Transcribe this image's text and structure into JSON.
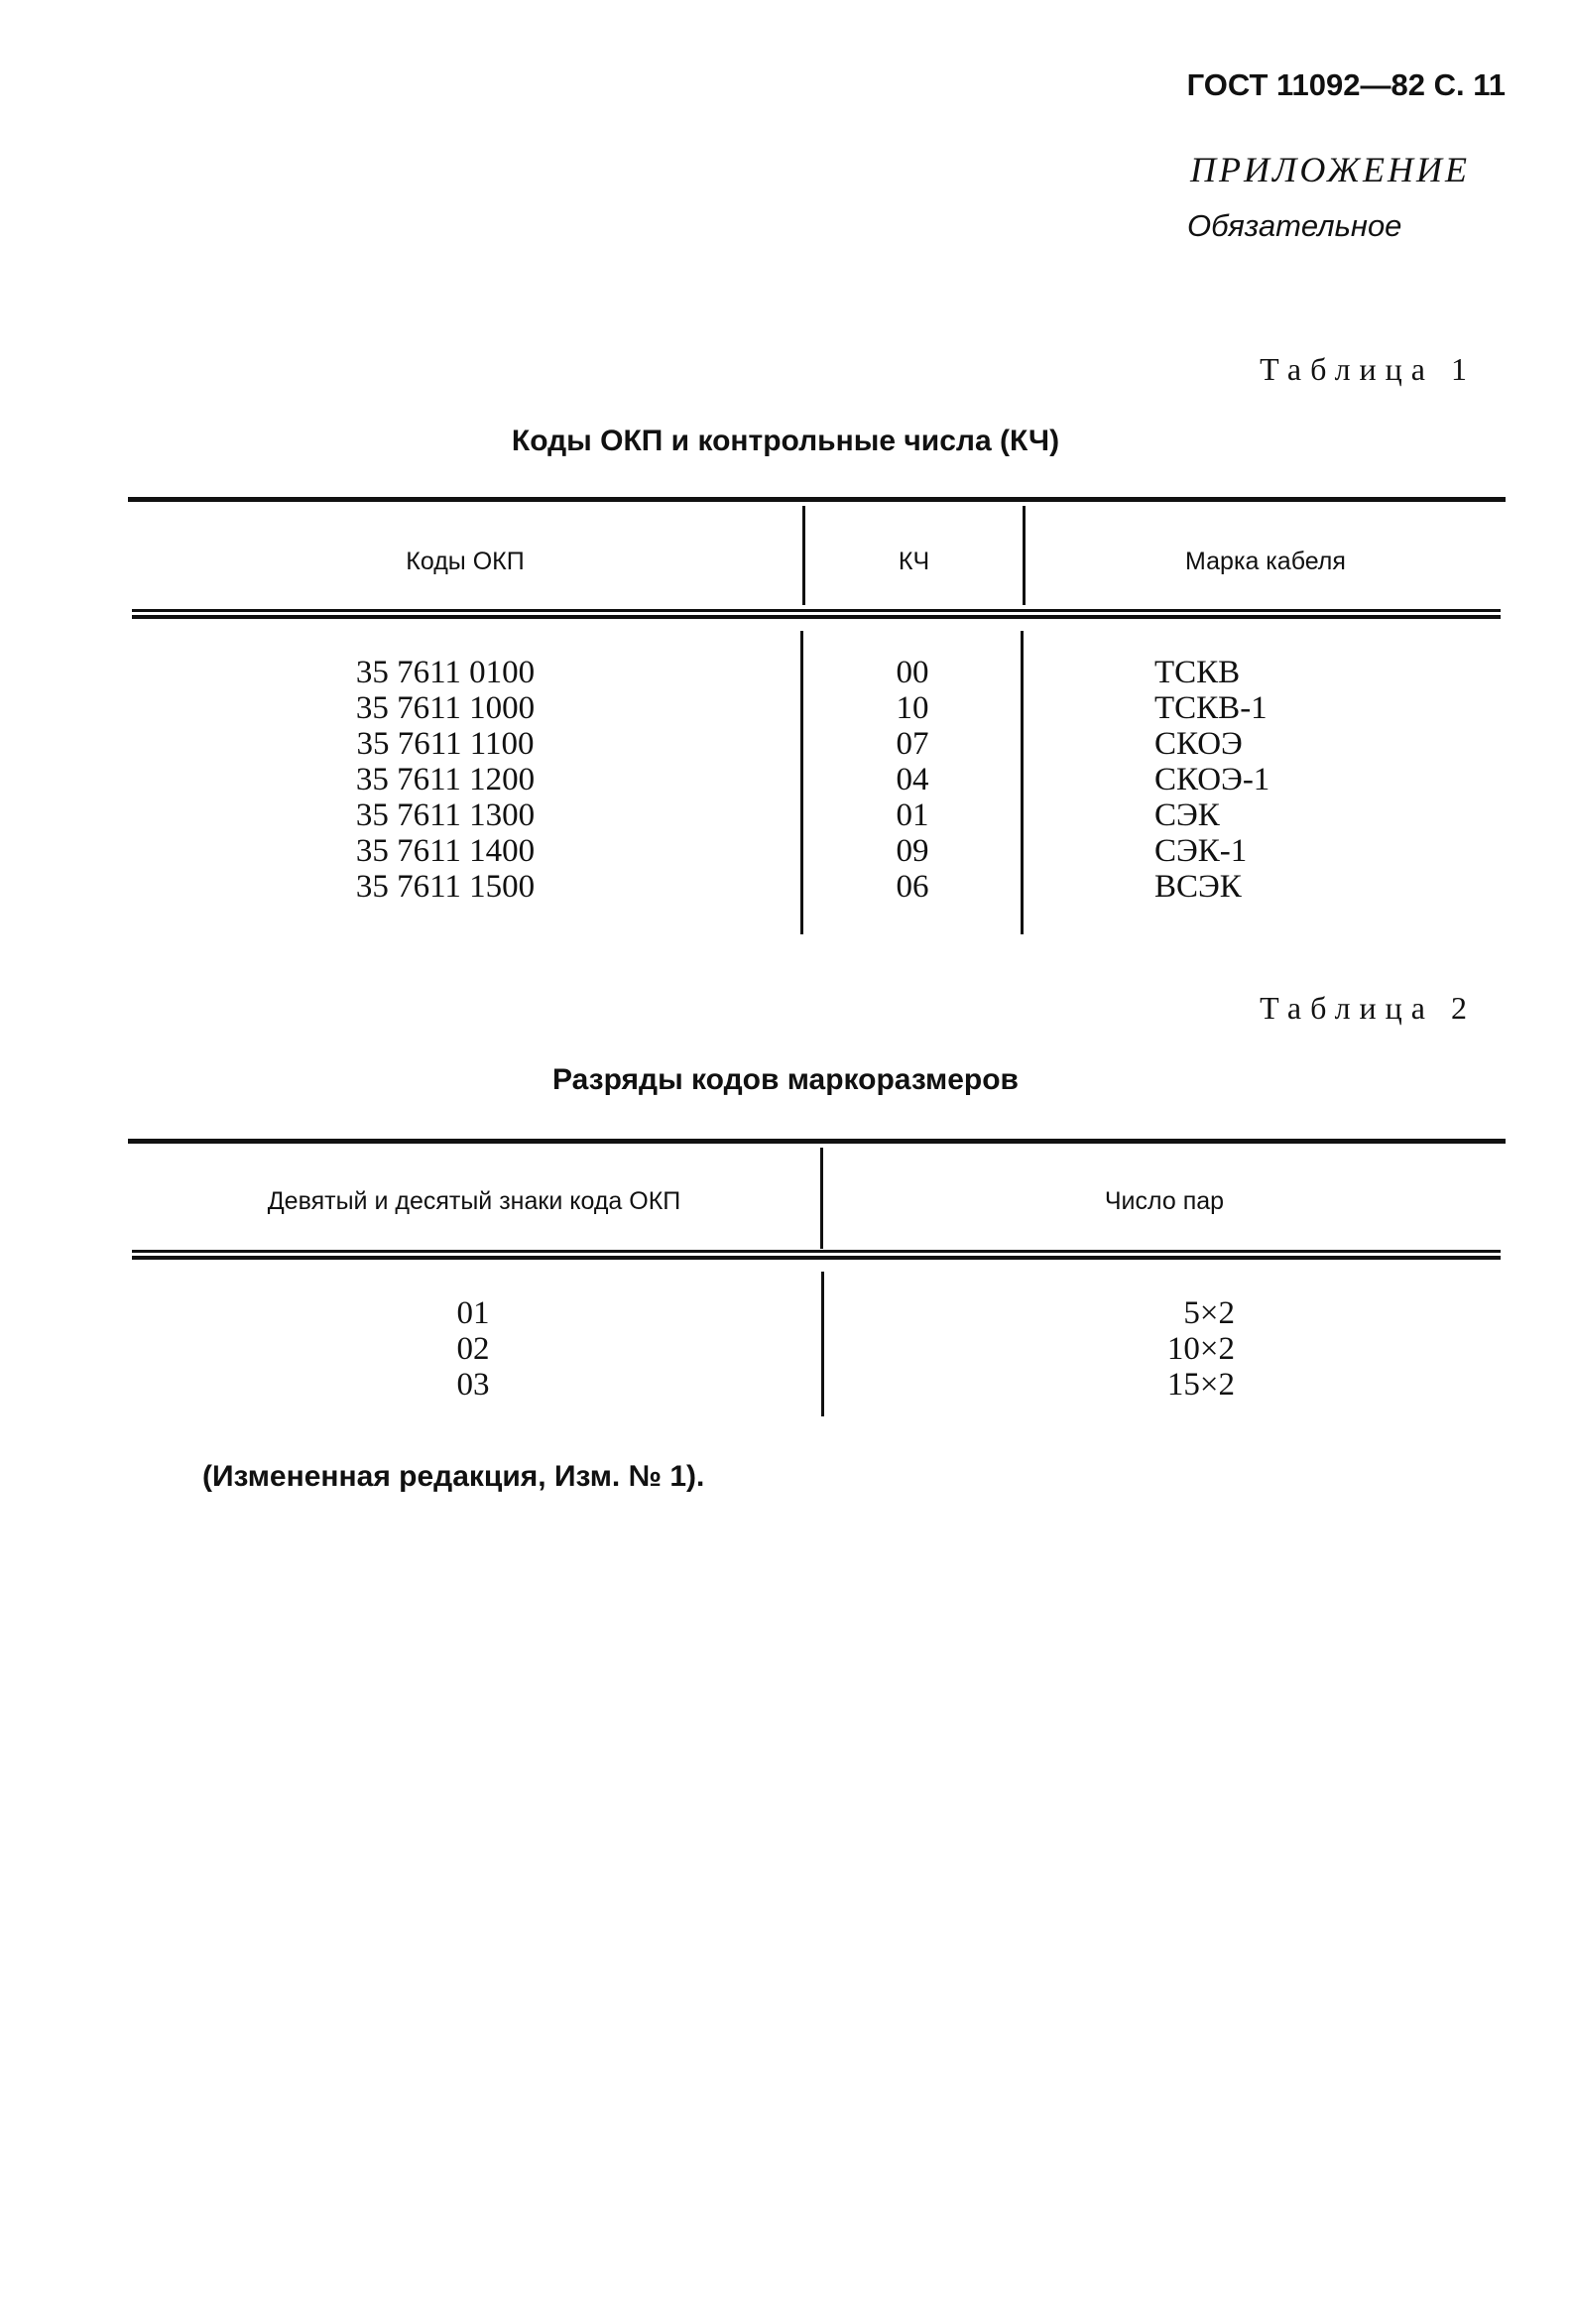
{
  "header": {
    "doc_ref": "ГОСТ 11092—82 С. 11"
  },
  "appendix": {
    "title": "ПРИЛОЖЕНИЕ",
    "status": "Обязательное"
  },
  "table1": {
    "label": "Таблица 1",
    "title": "Коды ОКП и контрольные числа (КЧ)",
    "columns": [
      "Коды ОКП",
      "КЧ",
      "Марка кабеля"
    ],
    "rows": [
      [
        "35 7611 0100",
        "00",
        "ТСКВ"
      ],
      [
        "35 7611 1000",
        "10",
        "ТСКВ-1"
      ],
      [
        "35 7611 1100",
        "07",
        "СКОЭ"
      ],
      [
        "35 7611 1200",
        "04",
        "СКОЭ-1"
      ],
      [
        "35 7611 1300",
        "01",
        "СЭК"
      ],
      [
        "35 7611 1400",
        "09",
        "СЭК-1"
      ],
      [
        "35 7611 1500",
        "06",
        "ВСЭК"
      ]
    ]
  },
  "table2": {
    "label": "Таблица 2",
    "title": "Разряды кодов маркоразмеров",
    "columns": [
      "Девятый и десятый знаки кода ОКП",
      "Число пар"
    ],
    "rows": [
      [
        "01",
        "5×2"
      ],
      [
        "02",
        "10×2"
      ],
      [
        "03",
        "15×2"
      ]
    ]
  },
  "footnote": "(Измененная редакция, Изм. № 1)."
}
